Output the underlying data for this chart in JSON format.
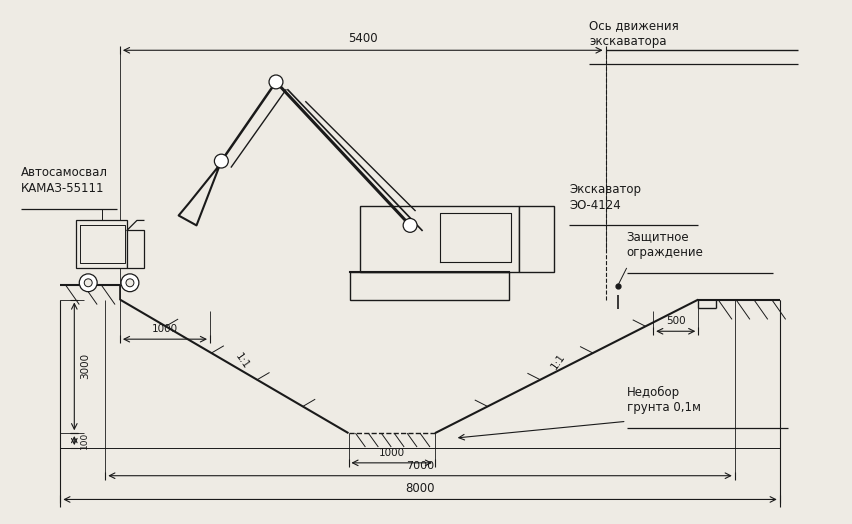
{
  "bg_color": "#eeebe4",
  "line_color": "#1a1a1a",
  "fig_w": 8.52,
  "fig_h": 5.24,
  "labels": {
    "os_line1": "Ось движения",
    "os_line2": "экскаватора",
    "avto_line1": "Автосамосвал",
    "avto_line2": "КАМАЗ-55111",
    "eksk_line1": "Экскаватор",
    "eksk_line2": "ЭО-4124",
    "zash_line1": "Защитное",
    "zash_line2": "ограждение",
    "nedobor_line1": "Недобор",
    "nedobor_line2": "грунта 0,1м",
    "d5400": "5400",
    "d1000L": "1000",
    "d1000B": "1000",
    "d500": "500",
    "d3000": "3000",
    "d100": "100",
    "d7000": "7000",
    "d8000": "8000",
    "slope1": "1:1",
    "slope2": "1:1"
  }
}
